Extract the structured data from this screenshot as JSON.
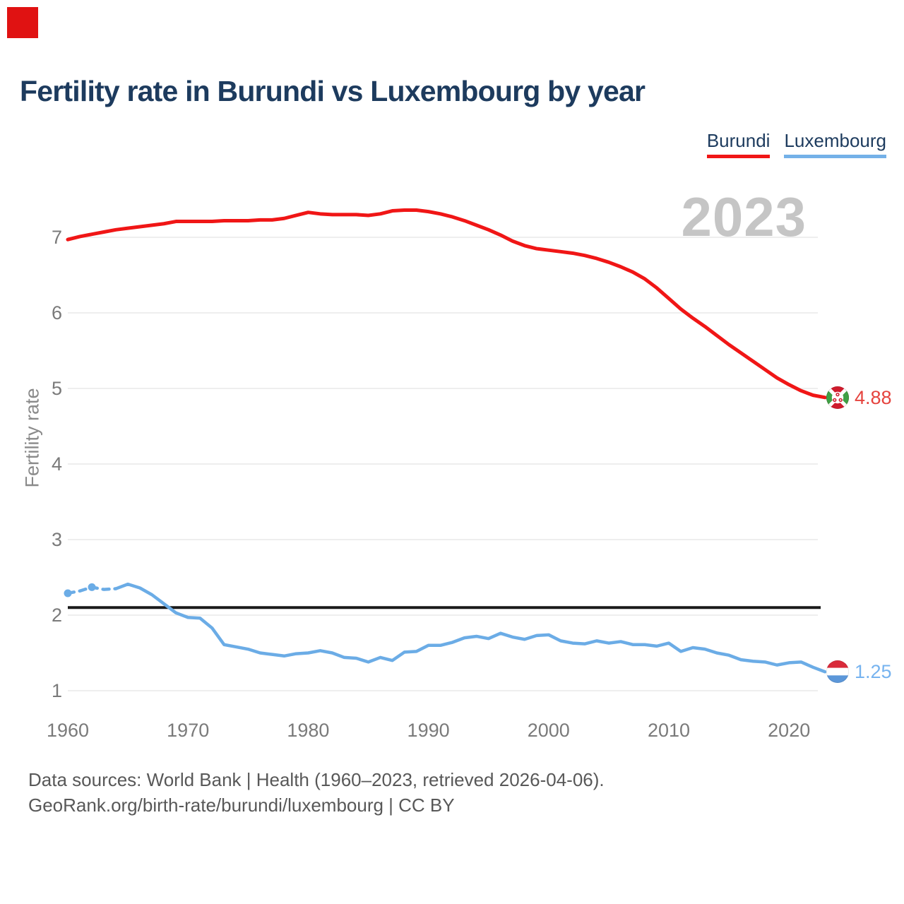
{
  "ui": {
    "corner_square_color": "#e01212",
    "background_color": "#ffffff",
    "title_color": "#1d3b5e",
    "gridline_color": "#e9e9e9",
    "tick_color": "#7a7a7a"
  },
  "title": "Fertility rate in Burundi vs Luxembourg by year",
  "legend": {
    "items": [
      {
        "label": "Burundi",
        "color": "#f01616"
      },
      {
        "label": "Luxembourg",
        "color": "#74b1e8"
      }
    ]
  },
  "watermark": "2023",
  "y_axis_title": "Fertility rate",
  "end_labels": {
    "burundi": {
      "value": "4.88",
      "flag": "burundi-flag-icon",
      "color": "#e5433e"
    },
    "luxembourg": {
      "value": "1.25",
      "flag": "luxembourg-flag-icon",
      "color": "#76b3ef"
    }
  },
  "footer": {
    "line1": "Data sources: World Bank | Health (1960–2023, retrieved 2026-04-06).",
    "line2": "GeoRank.org/birth-rate/burundi/luxembourg | CC BY"
  },
  "chart_data": {
    "type": "line",
    "title": "Fertility rate in Burundi vs Luxembourg by year",
    "xlabel": "",
    "ylabel": "Fertility rate",
    "x_start_year": 1960,
    "x_end_year": 2023,
    "x_ticks": [
      1960,
      1970,
      1980,
      1990,
      2000,
      2010,
      2020
    ],
    "y_ticks": [
      1,
      2,
      3,
      4,
      5,
      6,
      7
    ],
    "ylim": [
      0.8,
      7.6
    ],
    "grid": "horizontal-only",
    "legend_position": "top-right",
    "watermark": "2023",
    "reference_line": {
      "value": 2.1,
      "color": "#1a1a1a"
    },
    "series": [
      {
        "name": "Burundi",
        "color": "#f01616",
        "line_width": 5,
        "end_value": 4.88,
        "values": [
          6.97,
          7.01,
          7.04,
          7.07,
          7.1,
          7.12,
          7.14,
          7.16,
          7.18,
          7.21,
          7.21,
          7.21,
          7.21,
          7.22,
          7.22,
          7.22,
          7.23,
          7.23,
          7.25,
          7.29,
          7.33,
          7.31,
          7.3,
          7.3,
          7.3,
          7.29,
          7.31,
          7.35,
          7.36,
          7.36,
          7.34,
          7.31,
          7.27,
          7.22,
          7.16,
          7.1,
          7.03,
          6.95,
          6.89,
          6.85,
          6.83,
          6.81,
          6.79,
          6.76,
          6.72,
          6.67,
          6.61,
          6.54,
          6.45,
          6.33,
          6.19,
          6.05,
          5.93,
          5.82,
          5.7,
          5.58,
          5.47,
          5.36,
          5.25,
          5.14,
          5.05,
          4.97,
          4.91,
          4.88
        ]
      },
      {
        "name": "Luxembourg",
        "color": "#6bace6",
        "line_width": 4.5,
        "end_value": 1.25,
        "dashed_until_year": 1964,
        "marker_years": [
          1960,
          1962
        ],
        "values": [
          2.29,
          2.32,
          2.37,
          2.34,
          2.35,
          2.41,
          2.36,
          2.27,
          2.15,
          2.03,
          1.97,
          1.96,
          1.83,
          1.61,
          1.58,
          1.55,
          1.5,
          1.48,
          1.46,
          1.49,
          1.5,
          1.53,
          1.5,
          1.44,
          1.43,
          1.38,
          1.44,
          1.4,
          1.51,
          1.52,
          1.6,
          1.6,
          1.64,
          1.7,
          1.72,
          1.69,
          1.76,
          1.71,
          1.68,
          1.73,
          1.74,
          1.66,
          1.63,
          1.62,
          1.66,
          1.63,
          1.65,
          1.61,
          1.61,
          1.59,
          1.63,
          1.52,
          1.57,
          1.55,
          1.5,
          1.47,
          1.41,
          1.39,
          1.38,
          1.34,
          1.37,
          1.38,
          1.31,
          1.25
        ]
      }
    ]
  }
}
